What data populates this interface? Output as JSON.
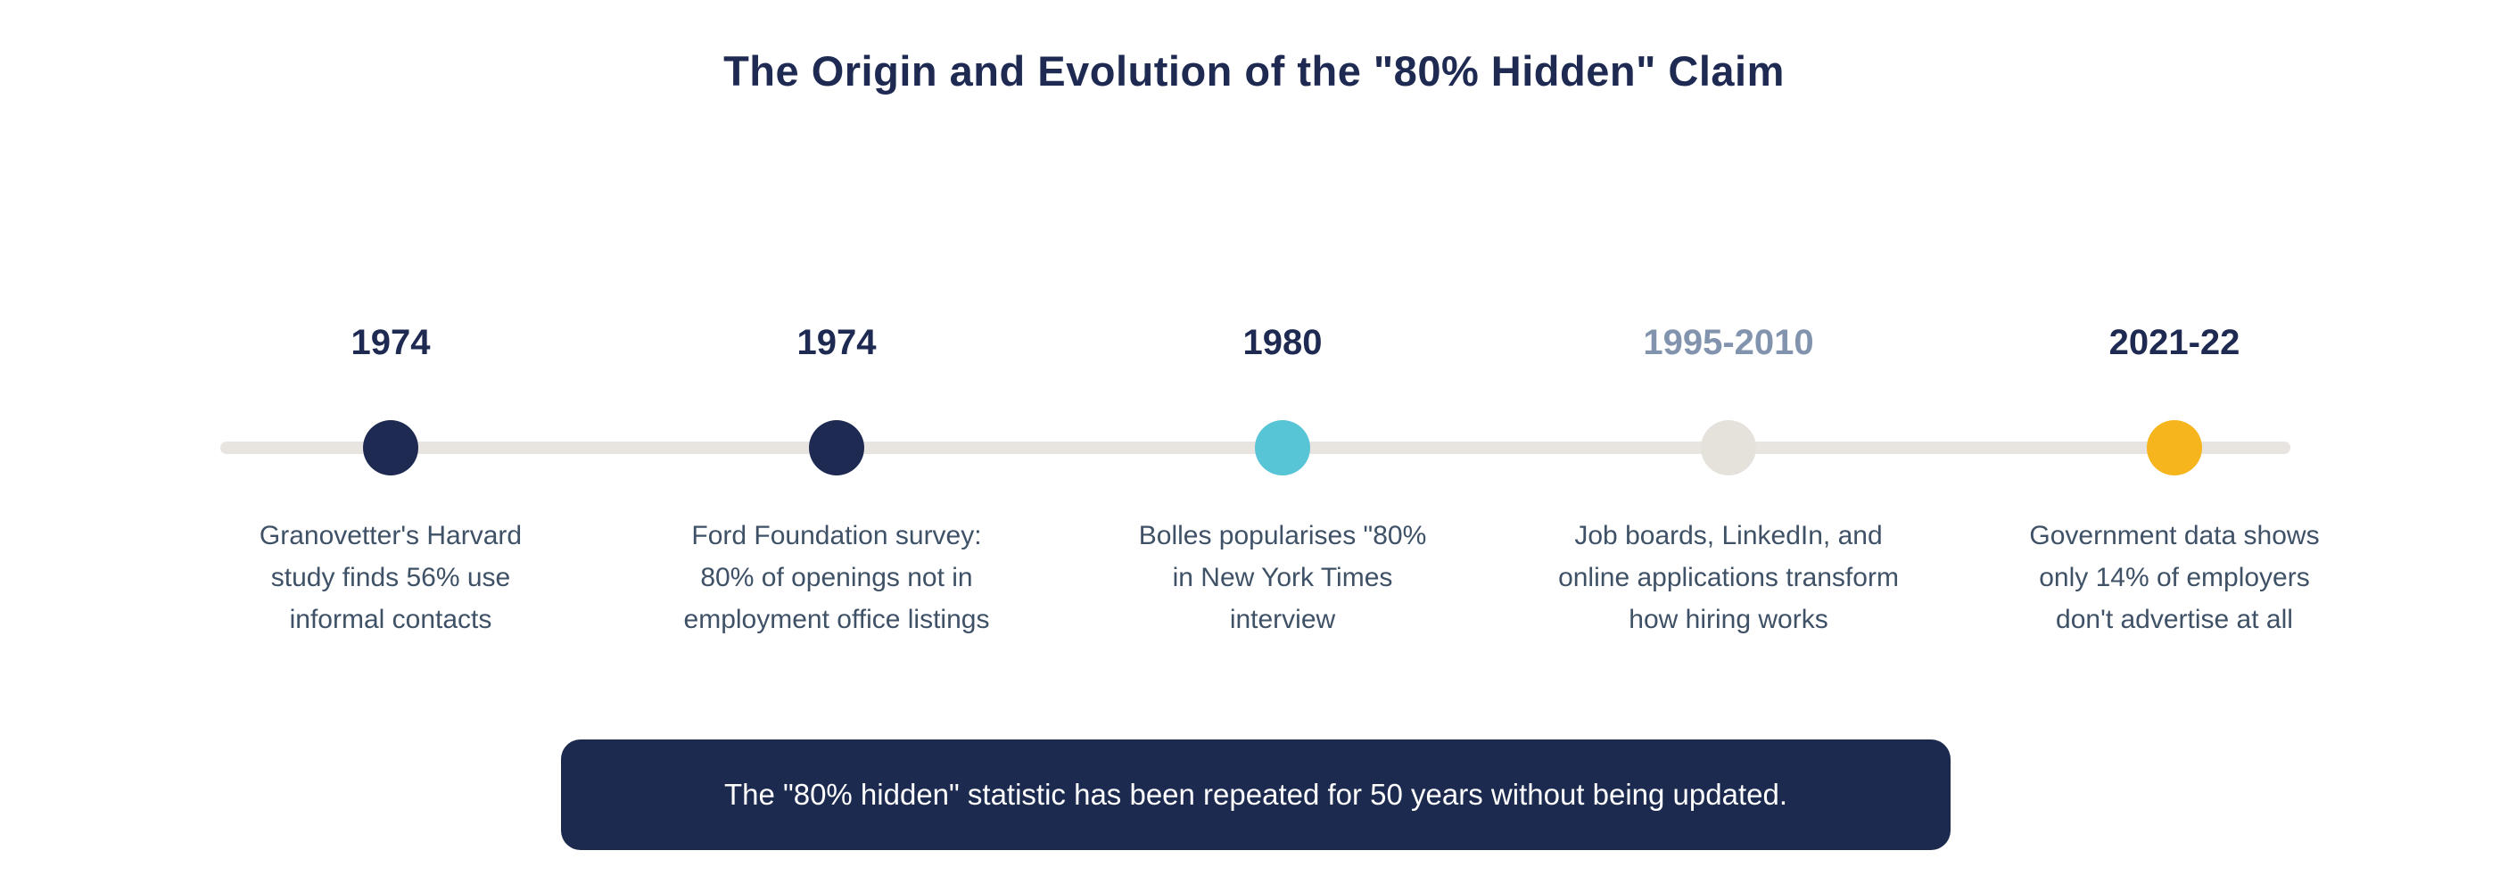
{
  "title": "The Origin and Evolution of the \"80% Hidden\" Claim",
  "colors": {
    "title_navy": "#1e2a52",
    "description_slate": "#3e5166",
    "timeline_line": "#e8e4df",
    "banner_background": "#1b2a4e",
    "banner_text": "#ffffff"
  },
  "timeline": {
    "events": [
      {
        "year": "1974",
        "year_color": "#1e2a52",
        "dot_color": "#1e2a52",
        "description": "Granovetter's Harvard\nstudy finds 56% use\ninformal contacts"
      },
      {
        "year": "1974",
        "year_color": "#1e2a52",
        "dot_color": "#1e2a52",
        "description": "Ford Foundation survey:\n80% of openings not in\nemployment office listings"
      },
      {
        "year": "1980",
        "year_color": "#1e2a52",
        "dot_color": "#57c5d6",
        "description": "Bolles popularises \"80%\nin New York Times\ninterview"
      },
      {
        "year": "1995-2010",
        "year_color": "#8293ad",
        "dot_color": "#e5e2db",
        "description": "Job boards, LinkedIn, and\nonline applications transform\nhow hiring works"
      },
      {
        "year": "2021-22",
        "year_color": "#1e2a52",
        "dot_color": "#f6b51d",
        "description": "Government data shows\nonly 14% of employers\ndon't advertise at all"
      }
    ]
  },
  "banner": {
    "text": "The \"80% hidden\" statistic has been repeated for 50 years without being updated."
  }
}
